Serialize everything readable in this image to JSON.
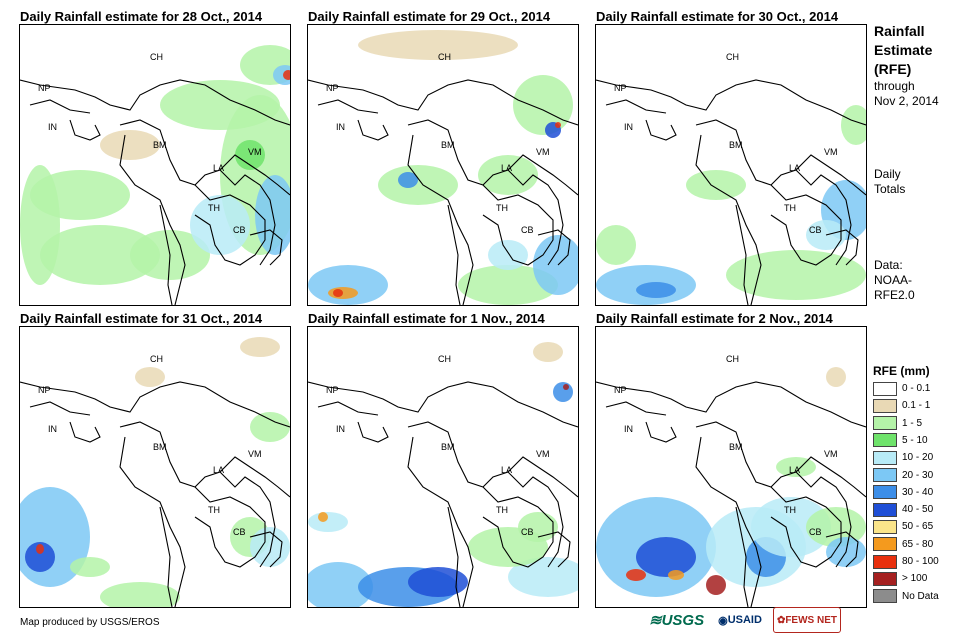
{
  "panels": [
    {
      "title": "Daily Rainfall estimate for 28 Oct., 2014"
    },
    {
      "title": "Daily Rainfall estimate for 29 Oct., 2014"
    },
    {
      "title": "Daily Rainfall estimate for 30 Oct., 2014"
    },
    {
      "title": "Daily Rainfall estimate for 31 Oct., 2014"
    },
    {
      "title": "Daily Rainfall estimate for 1 Nov., 2014"
    },
    {
      "title": "Daily Rainfall estimate for 2 Nov., 2014"
    }
  ],
  "country_labels": {
    "ch": "CH",
    "np": "NP",
    "in": "IN",
    "bm": "BM",
    "la": "LA",
    "vm": "VM",
    "th": "TH",
    "cb": "CB"
  },
  "sidebar": {
    "title_line1": "Rainfall",
    "title_line2": "Estimate",
    "title_line3": "(RFE)",
    "through": "through",
    "date": "Nov 2, 2014",
    "daily": "Daily",
    "totals": "Totals",
    "data_label": "Data:",
    "data_source1": "NOAA-",
    "data_source2": "RFE2.0"
  },
  "legend": {
    "title": "RFE (mm)",
    "items": [
      {
        "label": "0 - 0.1",
        "color": "#ffffff"
      },
      {
        "label": "0.1 - 1",
        "color": "#e9d9b5"
      },
      {
        "label": "1 - 5",
        "color": "#b4f3a8"
      },
      {
        "label": "5 - 10",
        "color": "#6fe36b"
      },
      {
        "label": "10 - 20",
        "color": "#b8ebf7"
      },
      {
        "label": "20 - 30",
        "color": "#7cc8f5"
      },
      {
        "label": "30 - 40",
        "color": "#3c8ee8"
      },
      {
        "label": "40 - 50",
        "color": "#1f4fd6"
      },
      {
        "label": "50 - 65",
        "color": "#fbe58a"
      },
      {
        "label": "65 - 80",
        "color": "#f49a1e"
      },
      {
        "label": "80 - 100",
        "color": "#e8300e"
      },
      {
        "label": "> 100",
        "color": "#a52020"
      },
      {
        "label": "No Data",
        "color": "#8c8c8c"
      }
    ]
  },
  "credit": "Map produced by USGS/EROS",
  "logos": {
    "usgs": "USGS",
    "usaid": "USAID",
    "fews": "FEWS NET"
  }
}
